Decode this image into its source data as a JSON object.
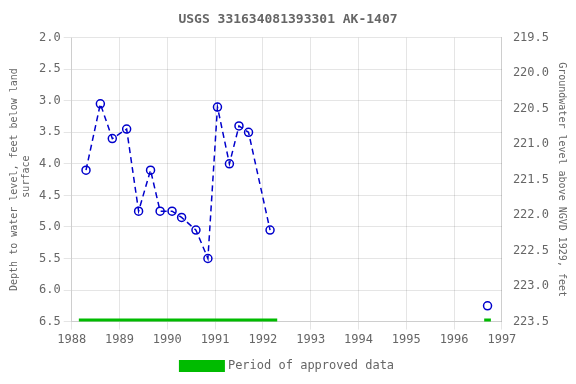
{
  "chart_data": {
    "type": "line",
    "title": "USGS 331634081393301 AK-1407",
    "y_label": "Depth to water level, feet below land\n surface",
    "y2_label": "Groundwater level above NGVD 1929, feet",
    "xlim": [
      1988.0,
      1997.0
    ],
    "xticks": [
      1988,
      1989,
      1990,
      1991,
      1992,
      1993,
      1994,
      1995,
      1996,
      1997
    ],
    "ylim": [
      6.5,
      2.0
    ],
    "yticks": [
      {
        "value": 2.0,
        "label": "2.0"
      },
      2.5,
      {
        "value": 3.0,
        "label": "3.0"
      },
      3.5,
      {
        "value": 4.0,
        "label": "4.0"
      },
      4.5,
      {
        "value": 5.0,
        "label": "5.0"
      },
      5.5,
      {
        "value": 6.0,
        "label": "6.0"
      },
      6.5
    ],
    "y2lim": [
      223.5,
      219.5
    ],
    "y2ticks": [
      219.5,
      {
        "value": 220.0,
        "label": "220.0"
      },
      220.5,
      {
        "value": 221.0,
        "label": "221.0"
      },
      221.5,
      {
        "value": 222.0,
        "label": "222.0"
      },
      222.5,
      {
        "value": 223.0,
        "label": "223.0"
      },
      223.5
    ],
    "grid": true,
    "legend": "bottom",
    "series": [
      {
        "x": [
          1988.3,
          1988.6,
          1988.85,
          1989.15,
          1989.4,
          1989.65,
          1989.85,
          1990.1,
          1990.3,
          1990.6,
          1990.85,
          1991.05,
          1991.3,
          1991.5,
          1991.7,
          1992.15
        ],
        "values": [
          4.1,
          3.05,
          3.6,
          3.45,
          4.75,
          4.1,
          4.75,
          4.75,
          4.85,
          5.05,
          5.5,
          3.1,
          4.0,
          3.4,
          3.5,
          5.05
        ],
        "color": "#0000cc",
        "line_style": "dashed",
        "marker": "circle"
      },
      {
        "x": [
          1996.7
        ],
        "values": [
          6.25
        ],
        "color": "#0000cc",
        "line_style": "none",
        "marker": "circle"
      }
    ],
    "periods": {
      "name": "Period of approved data",
      "color": "#00bb00",
      "ranges": [
        [
          1988.15,
          1992.3
        ],
        [
          1996.63,
          1996.77
        ]
      ]
    }
  }
}
